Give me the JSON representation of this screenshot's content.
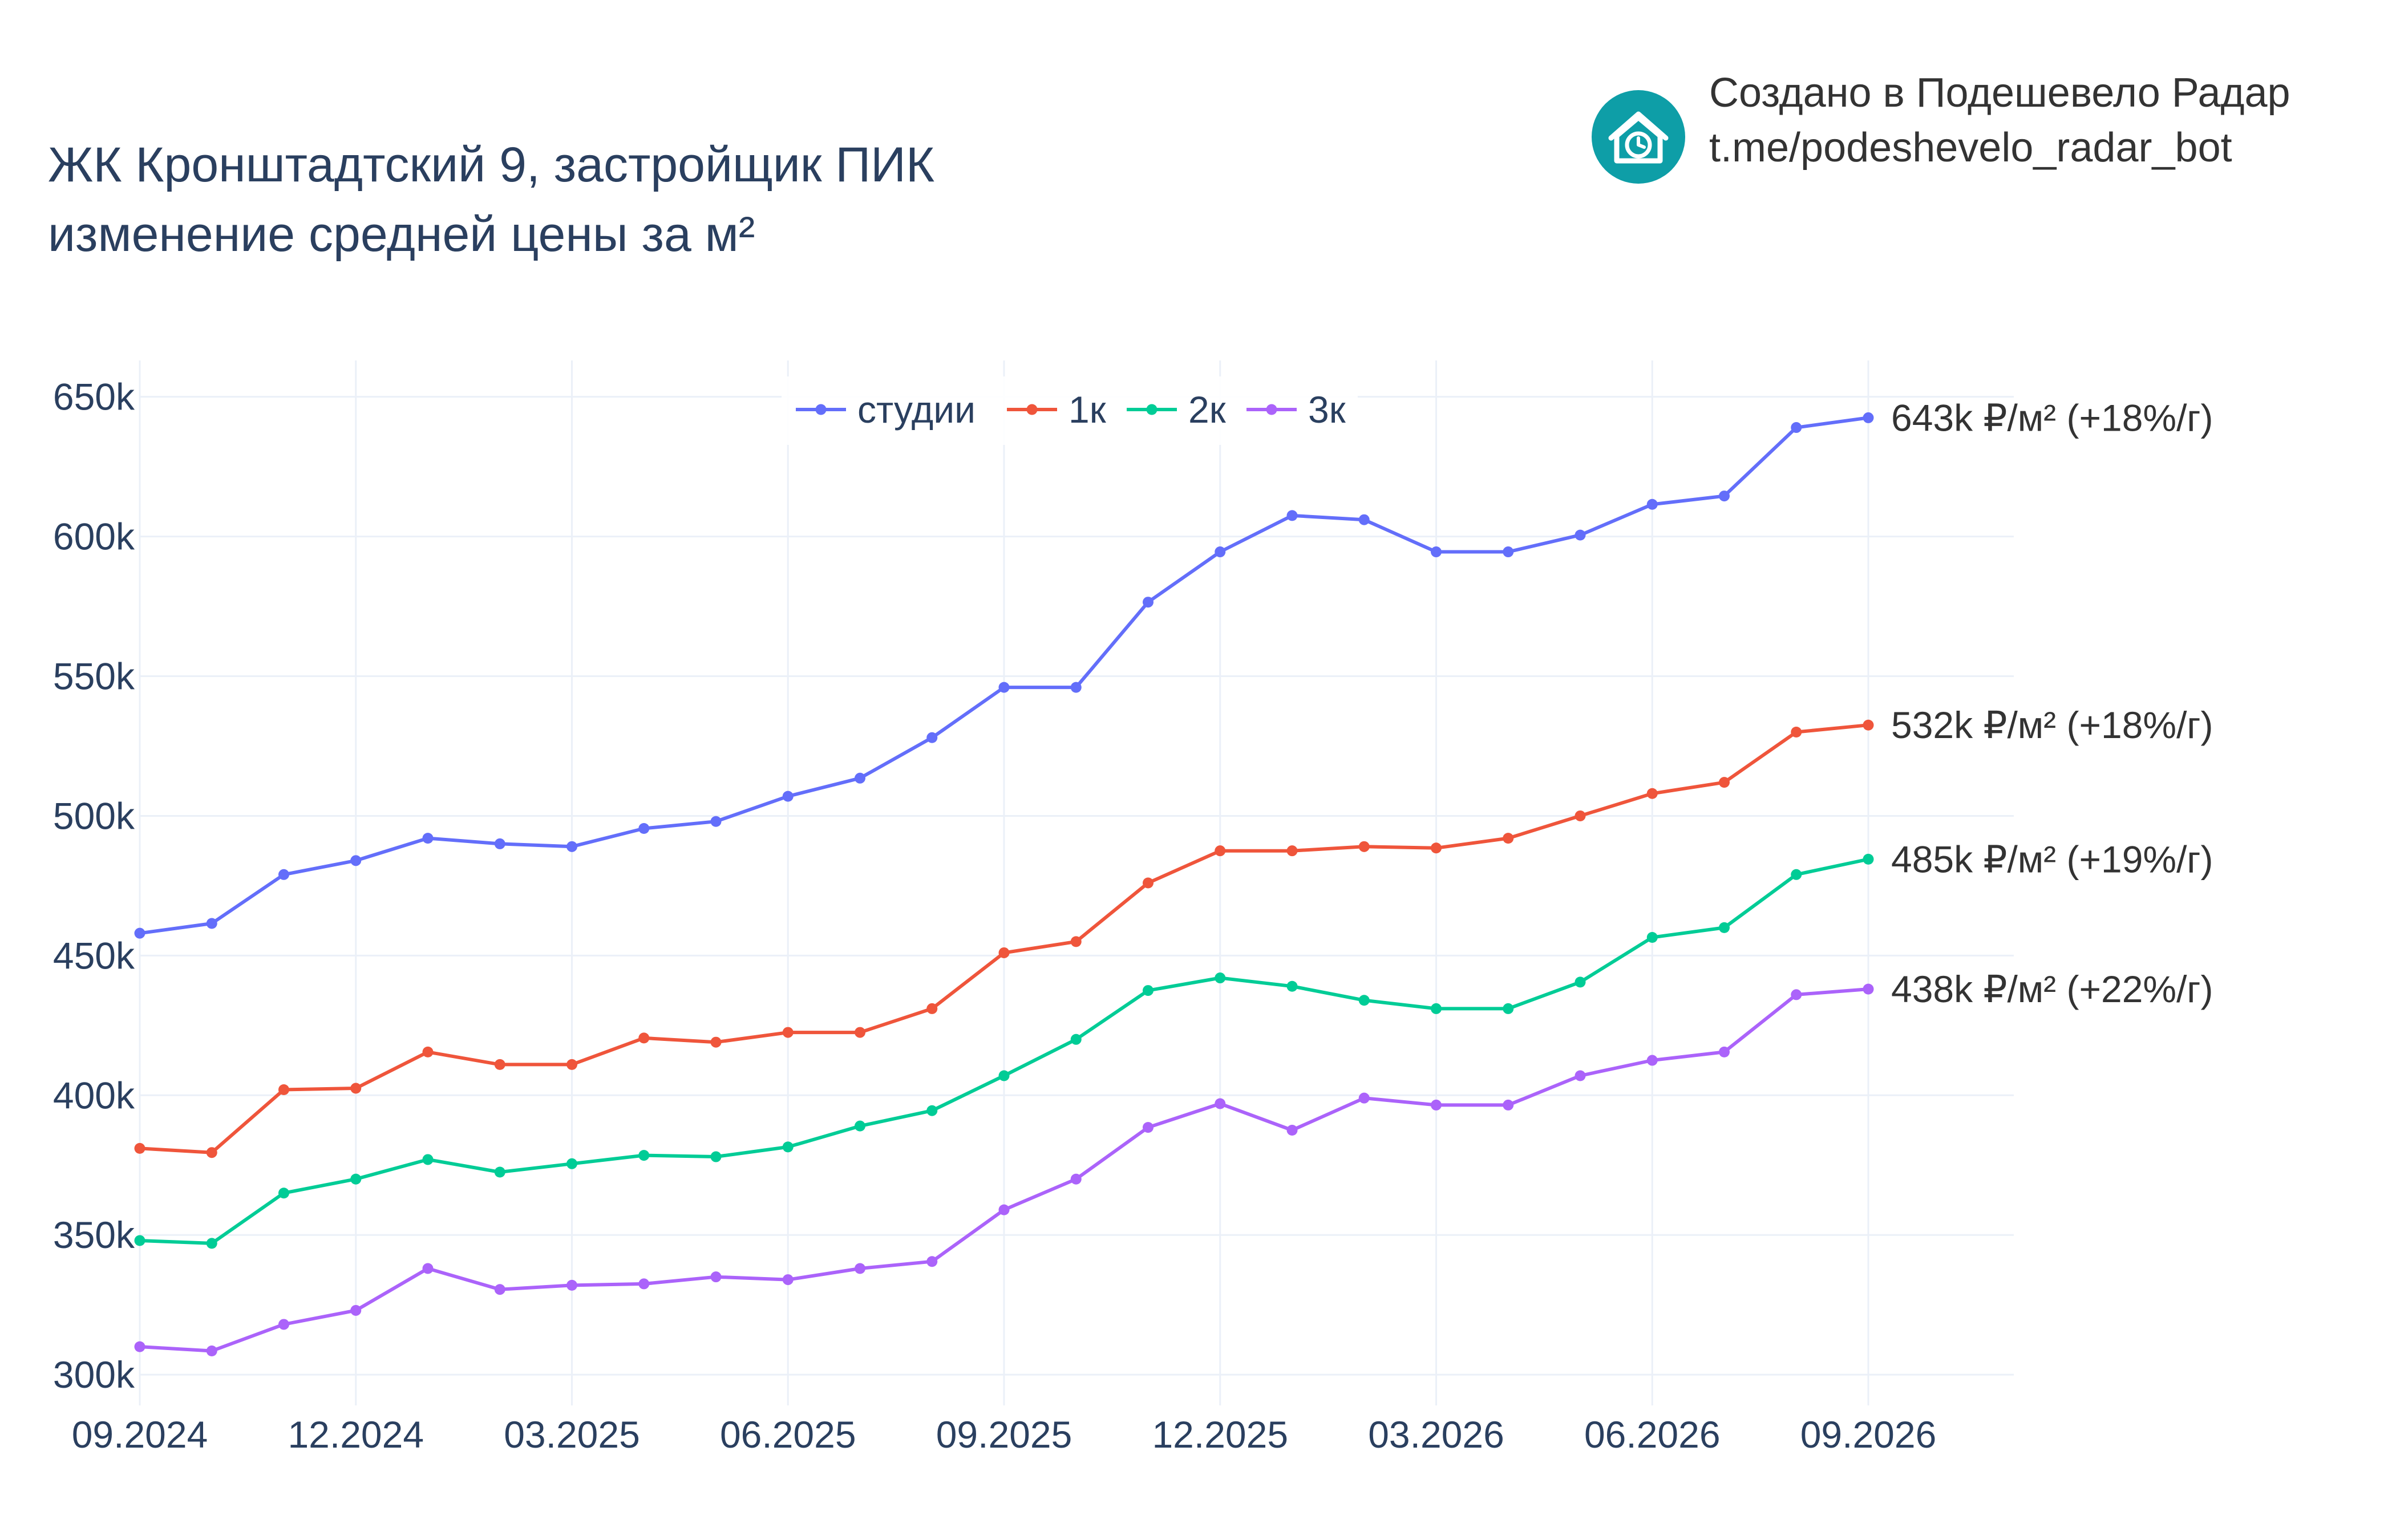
{
  "header": {
    "title_line1": "ЖК Кронштадтский 9, застройщик ПИК",
    "title_line2": "изменение средней цены за м²"
  },
  "brand": {
    "line1": "Создано в Подешевело Радар",
    "line2": "t.me/podeshevelo_radar_bot",
    "logo_icon": "house-clock-icon",
    "logo_color": "#0e9ea7"
  },
  "chart_data": {
    "type": "line",
    "title": "ЖК Кронштадтский 9, застройщик ПИК изменение средней цены за м²",
    "xlabel": "",
    "ylabel": "",
    "x": [
      "09.2024",
      "10.2024",
      "11.2024",
      "12.2024",
      "01.2025",
      "02.2025",
      "03.2025",
      "04.2025",
      "05.2025",
      "06.2025",
      "07.2025",
      "08.2025",
      "09.2025",
      "10.2025",
      "11.2025",
      "12.2025",
      "01.2026",
      "02.2026",
      "03.2026",
      "04.2026",
      "05.2026",
      "06.2026",
      "07.2026",
      "08.2026",
      "09.2026"
    ],
    "x_ticks": [
      "09.2024",
      "12.2024",
      "03.2025",
      "06.2025",
      "09.2025",
      "12.2025",
      "03.2026",
      "06.2026",
      "09.2026"
    ],
    "y_ticks": [
      {
        "value": 300000,
        "label": "300k"
      },
      {
        "value": 350000,
        "label": "350k"
      },
      {
        "value": 400000,
        "label": "400k"
      },
      {
        "value": 450000,
        "label": "450k"
      },
      {
        "value": 500000,
        "label": "500k"
      },
      {
        "value": 550000,
        "label": "550k"
      },
      {
        "value": 600000,
        "label": "600k"
      },
      {
        "value": 650000,
        "label": "650k"
      }
    ],
    "ylim": [
      289000,
      663000
    ],
    "grid": true,
    "legend_position": "top-center",
    "series": [
      {
        "name": "студии",
        "color": "#636efa",
        "end_label": "643k ₽/м² (+18%/г)",
        "values": [
          458000,
          461500,
          479000,
          484000,
          492000,
          490000,
          489000,
          495500,
          498000,
          507000,
          513500,
          528000,
          546000,
          546000,
          576500,
          594500,
          607500,
          606000,
          594500,
          594500,
          600500,
          611500,
          614500,
          639000,
          642500
        ]
      },
      {
        "name": "1к",
        "color": "#ef553b",
        "end_label": "532k ₽/м² (+18%/г)",
        "values": [
          381000,
          379500,
          402000,
          402500,
          415500,
          411000,
          411000,
          420500,
          419000,
          422500,
          422500,
          431000,
          451000,
          455000,
          476000,
          487500,
          487500,
          489000,
          488500,
          492000,
          500000,
          508000,
          512000,
          530000,
          532500
        ]
      },
      {
        "name": "2к",
        "color": "#00cc96",
        "end_label": "485k ₽/м² (+19%/г)",
        "values": [
          348000,
          347000,
          365000,
          370000,
          377000,
          372500,
          375500,
          378500,
          378000,
          381500,
          389000,
          394500,
          407000,
          420000,
          437500,
          442000,
          439000,
          434000,
          431000,
          431000,
          440500,
          456500,
          460000,
          479000,
          484500
        ]
      },
      {
        "name": "3к",
        "color": "#ab63fa",
        "end_label": "438k ₽/м² (+22%/г)",
        "values": [
          310000,
          308500,
          318000,
          323000,
          338000,
          330500,
          332000,
          332500,
          335000,
          334000,
          338000,
          340500,
          359000,
          370000,
          388500,
          397000,
          387500,
          399000,
          396500,
          396500,
          407000,
          412500,
          415500,
          436000,
          438000
        ]
      }
    ]
  }
}
